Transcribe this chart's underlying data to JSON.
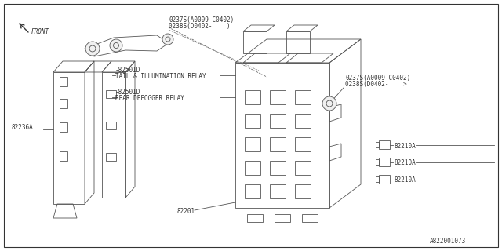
{
  "bg_color": "#ffffff",
  "lc": "#555555",
  "lw": 0.6,
  "title_bottom": "A822001073",
  "labels": {
    "front": "FRONT",
    "top_label1a": "0237S(A0009-C0402)",
    "top_label1b": "0238S(D0402-    )",
    "relay1_num": "-82501D",
    "relay1_name": "TAIL & ILLUMINATION RELAY",
    "relay2_num": "-82501D",
    "relay2_name": "REAR DEFOGGER RELAY",
    "left_part": "82236A",
    "fuse_box": "82201",
    "right_label1a": "0237S(A0009-C0402)",
    "right_label1b": "0238S(D0402-    >",
    "conn": "82210A"
  },
  "figsize": [
    6.4,
    3.2
  ],
  "dpi": 100
}
